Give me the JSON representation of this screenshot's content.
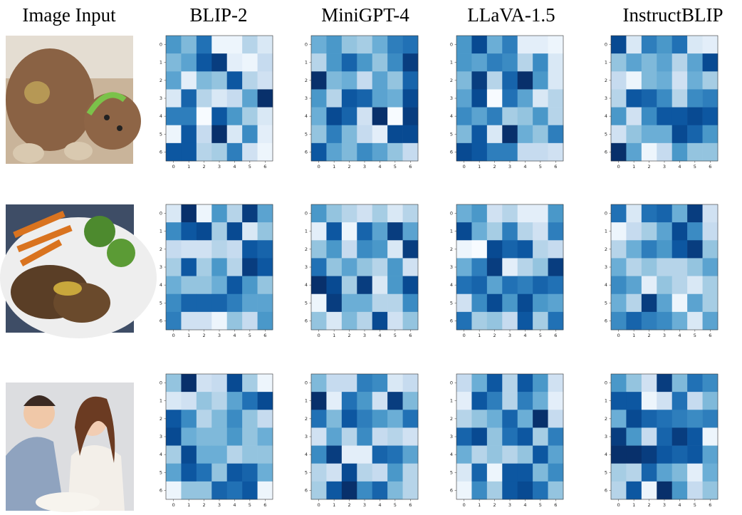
{
  "headers": [
    "Image Input",
    "BLIP-2",
    "MiniGPT-4",
    "LLaVA-1.5",
    "InstructBLIP"
  ],
  "chart_data": [
    {
      "type": "heatmap",
      "colormap": [
        "#f7fbff",
        "#deebf7",
        "#c6dbef",
        "#9ecae1",
        "#6baed6",
        "#4292c6",
        "#2171b5",
        "#08519c",
        "#08306b"
      ],
      "clim": [
        0,
        1
      ],
      "xticks": [
        0,
        1,
        2,
        3,
        4,
        5,
        6
      ],
      "yticks": [
        0,
        1,
        2,
        3,
        4,
        5,
        6
      ],
      "values": [
        [
          0.6,
          0.45,
          0.75,
          0.05,
          0.05,
          0.3,
          0.15
        ],
        [
          0.45,
          0.55,
          0.85,
          0.95,
          0.1,
          0.05,
          0.25
        ],
        [
          0.55,
          0.1,
          0.45,
          0.4,
          0.85,
          0.3,
          0.2
        ],
        [
          0.15,
          0.8,
          0.3,
          0.15,
          0.25,
          0.55,
          1.0
        ],
        [
          0.7,
          0.7,
          0.0,
          0.85,
          0.6,
          0.35,
          0.15
        ],
        [
          0.05,
          0.85,
          0.25,
          1.0,
          0.15,
          0.65,
          0.1
        ],
        [
          0.85,
          0.85,
          0.3,
          0.35,
          0.7,
          0.2,
          0.05
        ]
      ]
    },
    {
      "type": "heatmap",
      "colormap": [
        "#f7fbff",
        "#deebf7",
        "#c6dbef",
        "#9ecae1",
        "#6baed6",
        "#4292c6",
        "#2171b5",
        "#08519c",
        "#08306b"
      ],
      "clim": [
        0,
        1
      ],
      "xticks": [
        0,
        1,
        2,
        3,
        4,
        5,
        6
      ],
      "yticks": [
        0,
        1,
        2,
        3,
        4,
        5,
        6
      ],
      "values": [
        [
          0.5,
          0.6,
          0.4,
          0.35,
          0.5,
          0.7,
          0.75
        ],
        [
          0.3,
          0.6,
          0.8,
          0.6,
          0.4,
          0.65,
          0.95
        ],
        [
          1.0,
          0.45,
          0.5,
          0.25,
          0.55,
          0.4,
          0.8
        ],
        [
          0.6,
          0.3,
          0.85,
          0.8,
          0.55,
          0.5,
          0.9
        ],
        [
          0.5,
          0.9,
          0.8,
          0.2,
          1.0,
          0.0,
          0.95
        ],
        [
          0.4,
          0.7,
          0.45,
          0.25,
          0.1,
          0.9,
          0.9
        ],
        [
          0.85,
          0.55,
          0.45,
          0.65,
          0.55,
          0.4,
          0.25
        ]
      ]
    },
    {
      "type": "heatmap",
      "colormap": [
        "#f7fbff",
        "#deebf7",
        "#c6dbef",
        "#9ecae1",
        "#6baed6",
        "#4292c6",
        "#2171b5",
        "#08519c",
        "#08306b"
      ],
      "clim": [
        0,
        1
      ],
      "xticks": [
        0,
        1,
        2,
        3,
        4,
        5,
        6
      ],
      "yticks": [
        0,
        1,
        2,
        3,
        4,
        5,
        6
      ],
      "values": [
        [
          0.6,
          0.9,
          0.5,
          0.7,
          0.1,
          0.1,
          0.05
        ],
        [
          0.6,
          0.55,
          0.7,
          0.65,
          0.3,
          0.65,
          0.15
        ],
        [
          0.45,
          0.95,
          0.3,
          0.8,
          1.0,
          0.6,
          0.15
        ],
        [
          0.55,
          0.9,
          0.0,
          0.75,
          0.55,
          0.15,
          0.3
        ],
        [
          0.65,
          0.55,
          0.7,
          0.35,
          0.4,
          0.6,
          0.3
        ],
        [
          0.45,
          0.85,
          0.15,
          1.0,
          0.5,
          0.4,
          0.7
        ],
        [
          0.9,
          0.85,
          0.7,
          0.7,
          0.25,
          0.25,
          0.2
        ]
      ]
    },
    {
      "type": "heatmap",
      "colormap": [
        "#f7fbff",
        "#deebf7",
        "#c6dbef",
        "#9ecae1",
        "#6baed6",
        "#4292c6",
        "#2171b5",
        "#08519c",
        "#08306b"
      ],
      "clim": [
        0,
        1
      ],
      "xticks": [
        0,
        1,
        2,
        3,
        4,
        5,
        6
      ],
      "yticks": [
        0,
        1,
        2,
        3,
        4,
        5,
        6
      ],
      "values": [
        [
          0.9,
          0.15,
          0.7,
          0.6,
          0.75,
          0.15,
          0.1
        ],
        [
          0.4,
          0.55,
          0.45,
          0.55,
          0.3,
          0.55,
          0.9
        ],
        [
          0.25,
          0.05,
          0.45,
          0.5,
          0.2,
          0.5,
          0.35
        ],
        [
          0.3,
          0.85,
          0.8,
          0.65,
          0.3,
          0.65,
          0.7
        ],
        [
          0.6,
          0.2,
          0.65,
          0.85,
          0.85,
          0.9,
          0.85
        ],
        [
          0.2,
          0.4,
          0.5,
          0.5,
          0.9,
          0.8,
          0.6
        ],
        [
          1.0,
          0.55,
          0.05,
          0.25,
          0.6,
          0.4,
          0.4
        ]
      ]
    },
    {
      "type": "heatmap",
      "colormap": [
        "#f7fbff",
        "#deebf7",
        "#c6dbef",
        "#9ecae1",
        "#6baed6",
        "#4292c6",
        "#2171b5",
        "#08519c",
        "#08306b"
      ],
      "clim": [
        0,
        1
      ],
      "xticks": [
        0,
        1,
        2,
        3,
        4,
        5,
        6
      ],
      "yticks": [
        0,
        1,
        2,
        3,
        4,
        5,
        6
      ],
      "values": [
        [
          0.15,
          1.0,
          0.05,
          0.6,
          0.3,
          0.95,
          0.55
        ],
        [
          0.65,
          0.85,
          0.9,
          0.35,
          0.9,
          0.15,
          0.4
        ],
        [
          0.25,
          0.2,
          0.2,
          0.3,
          0.25,
          0.85,
          0.8
        ],
        [
          0.35,
          0.85,
          0.35,
          0.6,
          0.3,
          0.95,
          0.85
        ],
        [
          0.5,
          0.4,
          0.4,
          0.5,
          0.85,
          0.6,
          0.4
        ],
        [
          0.65,
          0.8,
          0.8,
          0.8,
          0.7,
          0.55,
          0.55
        ],
        [
          0.7,
          0.2,
          0.2,
          0.05,
          0.4,
          0.25,
          0.6
        ]
      ]
    },
    {
      "type": "heatmap",
      "colormap": [
        "#f7fbff",
        "#deebf7",
        "#c6dbef",
        "#9ecae1",
        "#6baed6",
        "#4292c6",
        "#2171b5",
        "#08519c",
        "#08306b"
      ],
      "clim": [
        0,
        1
      ],
      "xticks": [
        0,
        1,
        2,
        3,
        4,
        5,
        6
      ],
      "yticks": [
        0,
        1,
        2,
        3,
        4,
        5,
        6
      ],
      "values": [
        [
          0.6,
          0.4,
          0.3,
          0.2,
          0.35,
          0.15,
          0.3
        ],
        [
          0.1,
          0.85,
          0.05,
          0.8,
          0.55,
          0.95,
          0.55
        ],
        [
          0.4,
          0.6,
          0.25,
          0.65,
          0.6,
          0.15,
          0.95
        ],
        [
          0.75,
          0.4,
          0.55,
          0.4,
          0.3,
          0.6,
          0.2
        ],
        [
          1.0,
          0.9,
          0.35,
          0.95,
          0.15,
          0.6,
          0.9
        ],
        [
          0.05,
          0.95,
          0.5,
          0.5,
          0.3,
          0.3,
          0.65
        ],
        [
          0.4,
          0.15,
          0.45,
          0.3,
          0.9,
          0.2,
          0.4
        ]
      ]
    },
    {
      "type": "heatmap",
      "colormap": [
        "#f7fbff",
        "#deebf7",
        "#c6dbef",
        "#9ecae1",
        "#6baed6",
        "#4292c6",
        "#2171b5",
        "#08519c",
        "#08306b"
      ],
      "clim": [
        0,
        1
      ],
      "xticks": [
        0,
        1,
        2,
        3,
        4,
        5,
        6
      ],
      "yticks": [
        0,
        1,
        2,
        3,
        4,
        5,
        6
      ],
      "values": [
        [
          0.5,
          0.6,
          0.2,
          0.3,
          0.1,
          0.1,
          0.6
        ],
        [
          0.9,
          0.5,
          0.35,
          0.7,
          0.3,
          0.2,
          0.7
        ],
        [
          0.05,
          0.0,
          0.9,
          0.8,
          0.85,
          0.3,
          0.25
        ],
        [
          0.5,
          0.7,
          0.95,
          0.1,
          0.3,
          0.4,
          0.95
        ],
        [
          0.75,
          0.8,
          0.55,
          0.75,
          0.7,
          0.8,
          0.75
        ],
        [
          0.2,
          0.65,
          0.9,
          0.6,
          0.9,
          0.6,
          0.55
        ],
        [
          0.75,
          0.35,
          0.4,
          0.25,
          0.85,
          0.35,
          0.75
        ]
      ]
    },
    {
      "type": "heatmap",
      "colormap": [
        "#f7fbff",
        "#deebf7",
        "#c6dbef",
        "#9ecae1",
        "#6baed6",
        "#4292c6",
        "#2171b5",
        "#08519c",
        "#08306b"
      ],
      "clim": [
        0,
        1
      ],
      "xticks": [
        0,
        1,
        2,
        3,
        4,
        5,
        6
      ],
      "yticks": [
        0,
        1,
        2,
        3,
        4,
        5,
        6
      ],
      "values": [
        [
          0.75,
          0.15,
          0.75,
          0.8,
          0.5,
          0.95,
          0.2
        ],
        [
          0.05,
          0.25,
          0.35,
          0.55,
          0.9,
          0.65,
          0.25
        ],
        [
          0.3,
          0.5,
          0.7,
          0.6,
          0.85,
          0.95,
          0.4
        ],
        [
          0.5,
          0.3,
          0.4,
          0.3,
          0.3,
          0.4,
          0.55
        ],
        [
          0.65,
          0.55,
          0.1,
          0.4,
          0.3,
          0.15,
          0.35
        ],
        [
          0.5,
          0.3,
          0.95,
          0.55,
          0.05,
          0.55,
          0.35
        ],
        [
          0.65,
          0.8,
          0.7,
          0.65,
          0.5,
          0.15,
          0.55
        ]
      ]
    },
    {
      "type": "heatmap",
      "colormap": [
        "#f7fbff",
        "#deebf7",
        "#c6dbef",
        "#9ecae1",
        "#6baed6",
        "#4292c6",
        "#2171b5",
        "#08519c",
        "#08306b"
      ],
      "clim": [
        0,
        1
      ],
      "xticks": [
        0,
        1,
        2,
        3,
        4,
        5,
        6
      ],
      "yticks": [
        0,
        1,
        2,
        3,
        4,
        5,
        6
      ],
      "values": [
        [
          0.4,
          1.0,
          0.2,
          0.25,
          0.9,
          0.35,
          0.05
        ],
        [
          0.15,
          0.2,
          0.4,
          0.3,
          0.55,
          0.75,
          0.9
        ],
        [
          0.85,
          0.65,
          0.3,
          0.45,
          0.65,
          0.4,
          0.25
        ],
        [
          0.9,
          0.5,
          0.45,
          0.45,
          0.6,
          0.4,
          0.5
        ],
        [
          0.35,
          0.9,
          0.5,
          0.5,
          0.3,
          0.4,
          0.4
        ],
        [
          0.55,
          0.85,
          0.75,
          0.4,
          0.85,
          0.8,
          0.5
        ],
        [
          0.05,
          0.4,
          0.4,
          0.8,
          0.75,
          0.85,
          0.05
        ]
      ]
    },
    {
      "type": "heatmap",
      "colormap": [
        "#f7fbff",
        "#deebf7",
        "#c6dbef",
        "#9ecae1",
        "#6baed6",
        "#4292c6",
        "#2171b5",
        "#08519c",
        "#08306b"
      ],
      "clim": [
        0,
        1
      ],
      "xticks": [
        0,
        1,
        2,
        3,
        4,
        5,
        6
      ],
      "yticks": [
        0,
        1,
        2,
        3,
        4,
        5,
        6
      ],
      "values": [
        [
          0.45,
          0.25,
          0.25,
          0.7,
          0.65,
          0.15,
          0.25
        ],
        [
          1.0,
          0.1,
          0.75,
          0.6,
          0.2,
          0.95,
          0.45
        ],
        [
          0.75,
          0.45,
          0.85,
          0.7,
          0.6,
          0.5,
          0.75
        ],
        [
          0.2,
          0.55,
          0.3,
          0.65,
          0.25,
          0.3,
          0.2
        ],
        [
          0.65,
          0.95,
          0.1,
          0.1,
          0.8,
          0.75,
          0.55
        ],
        [
          0.3,
          0.2,
          0.9,
          0.3,
          0.25,
          0.6,
          0.3
        ],
        [
          0.35,
          0.85,
          1.0,
          0.65,
          0.8,
          0.45,
          0.3
        ]
      ]
    },
    {
      "type": "heatmap",
      "colormap": [
        "#f7fbff",
        "#deebf7",
        "#c6dbef",
        "#9ecae1",
        "#6baed6",
        "#4292c6",
        "#2171b5",
        "#08519c",
        "#08306b"
      ],
      "clim": [
        0,
        1
      ],
      "xticks": [
        0,
        1,
        2,
        3,
        4,
        5,
        6
      ],
      "yticks": [
        0,
        1,
        2,
        3,
        4,
        5,
        6
      ],
      "values": [
        [
          0.25,
          0.5,
          0.85,
          0.3,
          0.85,
          0.6,
          0.2
        ],
        [
          0.1,
          0.85,
          0.7,
          0.3,
          0.7,
          0.5,
          0.1
        ],
        [
          0.3,
          0.4,
          0.5,
          0.8,
          0.5,
          1.0,
          0.25
        ],
        [
          0.8,
          0.9,
          0.4,
          0.75,
          0.85,
          0.35,
          0.7
        ],
        [
          0.5,
          0.3,
          0.4,
          0.3,
          0.4,
          0.85,
          0.55
        ],
        [
          0.15,
          0.8,
          0.05,
          0.85,
          0.85,
          0.45,
          0.65
        ],
        [
          0.05,
          0.65,
          0.35,
          0.85,
          0.9,
          0.75,
          0.4
        ]
      ]
    },
    {
      "type": "heatmap",
      "colormap": [
        "#f7fbff",
        "#deebf7",
        "#c6dbef",
        "#9ecae1",
        "#6baed6",
        "#4292c6",
        "#2171b5",
        "#08519c",
        "#08306b"
      ],
      "clim": [
        0,
        1
      ],
      "xticks": [
        0,
        1,
        2,
        3,
        4,
        5,
        6
      ],
      "yticks": [
        0,
        1,
        2,
        3,
        4,
        5,
        6
      ],
      "values": [
        [
          0.6,
          0.4,
          0.2,
          0.95,
          0.45,
          0.75,
          0.65
        ],
        [
          0.85,
          0.85,
          0.05,
          0.2,
          0.75,
          0.25,
          0.45
        ],
        [
          0.5,
          0.9,
          0.8,
          0.75,
          0.7,
          0.65,
          0.7
        ],
        [
          0.95,
          0.6,
          0.25,
          0.8,
          0.95,
          0.85,
          0.05
        ],
        [
          1.0,
          1.0,
          0.95,
          0.85,
          0.8,
          0.85,
          0.55
        ],
        [
          0.35,
          0.3,
          0.8,
          0.55,
          0.45,
          0.1,
          0.5
        ],
        [
          0.3,
          0.85,
          0.05,
          1.0,
          0.6,
          0.25,
          0.4
        ]
      ]
    }
  ]
}
